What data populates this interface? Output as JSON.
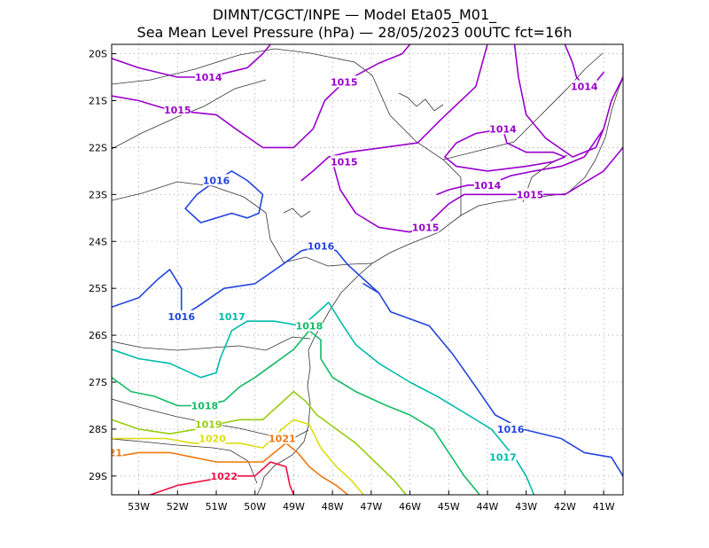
{
  "title": {
    "line1": "DIMNT/CGCT/INPE —  Model Eta05_M01_",
    "line2": "Sea Mean Level Pressure (hPa) — 28/05/2023 00UTC fct=16h"
  },
  "chart_data": {
    "type": "contour-map",
    "variable": "Sea Mean Level Pressure",
    "units": "hPa",
    "model": "Eta05_M01_",
    "init": "28/05/2023 00UTC",
    "forecast_hours": 16,
    "lon_range": [
      -53.7,
      -40.5
    ],
    "lat_range": [
      -29.4,
      -19.8
    ],
    "lon_ticks": [
      "53W",
      "52W",
      "51W",
      "50W",
      "49W",
      "48W",
      "47W",
      "46W",
      "45W",
      "44W",
      "43W",
      "42W",
      "41W"
    ],
    "lat_ticks": [
      "20S",
      "21S",
      "22S",
      "23S",
      "24S",
      "25S",
      "26S",
      "27S",
      "28S",
      "29S"
    ],
    "grid": "dotted",
    "levels": [
      {
        "value": "1014",
        "color": "#9900cc"
      },
      {
        "value": "1015",
        "color": "#9900cc"
      },
      {
        "value": "1016",
        "color": "#2244dd"
      },
      {
        "value": "1017",
        "color": "#00bbaa"
      },
      {
        "value": "1018",
        "color": "#11bb66"
      },
      {
        "value": "1019",
        "color": "#99cc11"
      },
      {
        "value": "1020",
        "color": "#dddd11"
      },
      {
        "value": "1021",
        "color": "#ee7711"
      },
      {
        "value": "1022",
        "color": "#ee1144"
      }
    ],
    "contour_labels": [
      {
        "text": "1014",
        "level": "1014",
        "lon": -51.2,
        "lat": -20.5
      },
      {
        "text": "1014",
        "level": "1014",
        "lon": -41.5,
        "lat": -20.7
      },
      {
        "text": "1014",
        "level": "1014",
        "lon": -43.6,
        "lat": -21.6
      },
      {
        "text": "1014",
        "level": "1014",
        "lon": -44.0,
        "lat": -22.8
      },
      {
        "text": "1015",
        "level": "1015",
        "lon": -47.7,
        "lat": -20.6
      },
      {
        "text": "1015",
        "level": "1015",
        "lon": -52.0,
        "lat": -21.2
      },
      {
        "text": "1015",
        "level": "1015",
        "lon": -47.7,
        "lat": -22.3
      },
      {
        "text": "1015",
        "level": "1015",
        "lon": -42.9,
        "lat": -23.0
      },
      {
        "text": "1015",
        "level": "1015",
        "lon": -45.6,
        "lat": -23.7
      },
      {
        "text": "1016",
        "level": "1016",
        "lon": -51.0,
        "lat": -22.7
      },
      {
        "text": "1016",
        "level": "1016",
        "lon": -48.3,
        "lat": -24.1
      },
      {
        "text": "1016",
        "level": "1016",
        "lon": -51.9,
        "lat": -25.6
      },
      {
        "text": "1016",
        "level": "1016",
        "lon": -43.4,
        "lat": -28.0
      },
      {
        "text": "1017",
        "level": "1017",
        "lon": -50.6,
        "lat": -25.6
      },
      {
        "text": "1017",
        "level": "1017",
        "lon": -43.6,
        "lat": -28.6
      },
      {
        "text": "1018",
        "level": "1018",
        "lon": -48.6,
        "lat": -25.8
      },
      {
        "text": "1018",
        "level": "1018",
        "lon": -51.3,
        "lat": -27.5
      },
      {
        "text": "1019",
        "level": "1019",
        "lon": -51.2,
        "lat": -27.9
      },
      {
        "text": "1020",
        "level": "1020",
        "lon": -51.1,
        "lat": -28.2
      },
      {
        "text": "1021",
        "level": "1021",
        "lon": -49.3,
        "lat": -28.2
      },
      {
        "text": "21",
        "level": "1021",
        "lon": -53.6,
        "lat": -28.5
      },
      {
        "text": "1022",
        "level": "1022",
        "lon": -50.8,
        "lat": -29.0
      }
    ],
    "contours": [
      {
        "level": "1014",
        "points": [
          [
            -53.7,
            -20.1
          ],
          [
            -53.0,
            -20.3
          ],
          [
            -52.0,
            -20.5
          ],
          [
            -51.2,
            -20.5
          ],
          [
            -50.2,
            -20.3
          ],
          [
            -49.8,
            -20.0
          ],
          [
            -49.6,
            -19.8
          ]
        ]
      },
      {
        "level": "1014",
        "points": [
          [
            -42.0,
            -19.8
          ],
          [
            -41.8,
            -20.2
          ],
          [
            -41.7,
            -20.5
          ],
          [
            -41.5,
            -20.7
          ],
          [
            -41.2,
            -20.6
          ],
          [
            -41.0,
            -20.4
          ]
        ]
      },
      {
        "level": "1014",
        "points": [
          [
            -45.3,
            -23.0
          ],
          [
            -45.0,
            -22.9
          ],
          [
            -44.5,
            -22.8
          ],
          [
            -44.0,
            -22.8
          ],
          [
            -43.4,
            -22.6
          ],
          [
            -42.8,
            -22.5
          ],
          [
            -42.1,
            -22.4
          ],
          [
            -41.5,
            -22.2
          ],
          [
            -41.0,
            -21.6
          ],
          [
            -40.8,
            -21.0
          ],
          [
            -40.5,
            -20.5
          ]
        ]
      },
      {
        "level": "1014",
        "points": [
          [
            -43.6,
            -21.6
          ],
          [
            -44.3,
            -21.7
          ],
          [
            -44.8,
            -21.9
          ],
          [
            -45.1,
            -22.2
          ],
          [
            -44.8,
            -22.4
          ],
          [
            -44.0,
            -22.5
          ],
          [
            -43.0,
            -22.4
          ],
          [
            -42.3,
            -22.3
          ],
          [
            -42.0,
            -22.2
          ],
          [
            -42.3,
            -22.1
          ],
          [
            -43.0,
            -22.1
          ],
          [
            -43.5,
            -21.9
          ],
          [
            -43.6,
            -21.6
          ]
        ]
      },
      {
        "level": "1015",
        "points": [
          [
            -53.7,
            -20.9
          ],
          [
            -53.0,
            -21.0
          ],
          [
            -52.2,
            -21.2
          ],
          [
            -51.0,
            -21.3
          ],
          [
            -50.5,
            -21.6
          ],
          [
            -49.8,
            -22.0
          ],
          [
            -49.0,
            -22.0
          ],
          [
            -48.5,
            -21.6
          ],
          [
            -48.2,
            -21.0
          ],
          [
            -47.7,
            -20.6
          ],
          [
            -46.8,
            -20.2
          ],
          [
            -46.2,
            -20.0
          ],
          [
            -46.0,
            -19.8
          ]
        ]
      },
      {
        "level": "1015",
        "points": [
          [
            -48.8,
            -22.7
          ],
          [
            -48.5,
            -22.5
          ],
          [
            -48.1,
            -22.2
          ],
          [
            -47.6,
            -22.1
          ],
          [
            -46.7,
            -22.0
          ],
          [
            -45.8,
            -21.9
          ],
          [
            -45.2,
            -21.4
          ],
          [
            -44.3,
            -20.7
          ],
          [
            -44.0,
            -19.8
          ]
        ]
      },
      {
        "level": "1015",
        "points": [
          [
            -48.0,
            -22.3
          ],
          [
            -47.8,
            -22.9
          ],
          [
            -47.4,
            -23.4
          ],
          [
            -46.8,
            -23.7
          ],
          [
            -46.0,
            -23.8
          ],
          [
            -45.5,
            -23.6
          ],
          [
            -45.0,
            -23.2
          ],
          [
            -44.6,
            -23.0
          ],
          [
            -43.8,
            -23.0
          ],
          [
            -43.0,
            -23.0
          ],
          [
            -42.0,
            -23.0
          ],
          [
            -41.0,
            -22.5
          ],
          [
            -40.5,
            -22.0
          ]
        ]
      },
      {
        "level": "1015",
        "points": [
          [
            -43.3,
            -19.8
          ],
          [
            -43.2,
            -20.5
          ],
          [
            -43.0,
            -21.3
          ],
          [
            -42.5,
            -21.8
          ],
          [
            -41.8,
            -22.2
          ],
          [
            -41.2,
            -22.0
          ],
          [
            -41.0,
            -21.6
          ]
        ]
      },
      {
        "level": "1016",
        "points": [
          [
            -53.7,
            -25.4
          ],
          [
            -53.0,
            -25.2
          ],
          [
            -52.5,
            -24.8
          ],
          [
            -52.2,
            -24.6
          ],
          [
            -51.9,
            -25.0
          ],
          [
            -51.9,
            -25.6
          ]
        ]
      },
      {
        "level": "1016",
        "points": [
          [
            -51.9,
            -25.6
          ],
          [
            -51.5,
            -25.4
          ],
          [
            -50.8,
            -25.0
          ],
          [
            -50.0,
            -24.9
          ],
          [
            -49.3,
            -24.5
          ],
          [
            -48.8,
            -24.2
          ],
          [
            -48.3,
            -24.1
          ],
          [
            -47.9,
            -24.2
          ],
          [
            -47.6,
            -24.5
          ],
          [
            -47.2,
            -24.8
          ],
          [
            -46.8,
            -25.1
          ]
        ]
      },
      {
        "level": "1016",
        "points": [
          [
            -51.8,
            -23.3
          ],
          [
            -51.5,
            -23.0
          ],
          [
            -51.0,
            -22.7
          ],
          [
            -50.6,
            -22.5
          ],
          [
            -50.2,
            -22.7
          ],
          [
            -49.8,
            -23.0
          ],
          [
            -49.9,
            -23.4
          ],
          [
            -50.2,
            -23.5
          ],
          [
            -50.6,
            -23.4
          ],
          [
            -51.0,
            -23.5
          ],
          [
            -51.4,
            -23.6
          ],
          [
            -51.8,
            -23.3
          ]
        ]
      },
      {
        "level": "1016",
        "points": [
          [
            -47.2,
            -24.9
          ],
          [
            -46.8,
            -25.1
          ],
          [
            -46.5,
            -25.5
          ],
          [
            -45.5,
            -25.8
          ],
          [
            -44.9,
            -26.4
          ],
          [
            -44.3,
            -27.1
          ],
          [
            -43.8,
            -27.7
          ],
          [
            -43.1,
            -28.0
          ],
          [
            -42.1,
            -28.2
          ],
          [
            -41.5,
            -28.5
          ],
          [
            -40.8,
            -28.6
          ],
          [
            -40.5,
            -29.0
          ]
        ]
      },
      {
        "level": "1017",
        "points": [
          [
            -53.7,
            -26.3
          ],
          [
            -53.0,
            -26.5
          ],
          [
            -52.2,
            -26.6
          ],
          [
            -51.4,
            -26.9
          ],
          [
            -51.0,
            -26.8
          ],
          [
            -50.9,
            -26.5
          ],
          [
            -50.6,
            -25.9
          ],
          [
            -50.2,
            -25.7
          ],
          [
            -49.5,
            -25.7
          ],
          [
            -48.8,
            -25.8
          ],
          [
            -48.5,
            -25.6
          ],
          [
            -48.1,
            -25.3
          ],
          [
            -47.8,
            -25.7
          ],
          [
            -47.4,
            -26.2
          ],
          [
            -46.8,
            -26.6
          ],
          [
            -46.0,
            -27.0
          ],
          [
            -45.3,
            -27.3
          ],
          [
            -44.5,
            -27.7
          ],
          [
            -43.9,
            -28.0
          ],
          [
            -43.6,
            -28.3
          ],
          [
            -43.3,
            -28.6
          ],
          [
            -43.0,
            -29.0
          ],
          [
            -42.8,
            -29.4
          ]
        ]
      },
      {
        "level": "1018",
        "points": [
          [
            -53.7,
            -26.9
          ],
          [
            -53.2,
            -27.2
          ],
          [
            -52.6,
            -27.3
          ],
          [
            -52.0,
            -27.5
          ],
          [
            -51.4,
            -27.5
          ],
          [
            -50.8,
            -27.4
          ],
          [
            -50.4,
            -27.1
          ],
          [
            -50.0,
            -26.9
          ],
          [
            -49.5,
            -26.6
          ],
          [
            -49.0,
            -26.3
          ],
          [
            -48.6,
            -25.9
          ],
          [
            -48.3,
            -26.1
          ],
          [
            -48.3,
            -26.5
          ],
          [
            -48.0,
            -26.9
          ],
          [
            -47.4,
            -27.2
          ],
          [
            -46.6,
            -27.5
          ],
          [
            -46.0,
            -27.7
          ],
          [
            -45.4,
            -28.0
          ],
          [
            -45.0,
            -28.5
          ],
          [
            -44.6,
            -29.0
          ],
          [
            -44.2,
            -29.4
          ]
        ]
      },
      {
        "level": "1019",
        "points": [
          [
            -53.7,
            -27.8
          ],
          [
            -53.0,
            -28.0
          ],
          [
            -52.2,
            -28.1
          ],
          [
            -51.5,
            -28.0
          ],
          [
            -51.0,
            -27.9
          ],
          [
            -50.4,
            -27.8
          ],
          [
            -49.8,
            -27.8
          ],
          [
            -49.4,
            -27.5
          ],
          [
            -49.0,
            -27.2
          ],
          [
            -48.7,
            -27.4
          ],
          [
            -48.4,
            -27.7
          ],
          [
            -47.9,
            -28.0
          ],
          [
            -47.4,
            -28.3
          ],
          [
            -46.9,
            -28.7
          ],
          [
            -46.4,
            -29.1
          ],
          [
            -46.1,
            -29.4
          ]
        ]
      },
      {
        "level": "1020",
        "points": [
          [
            -53.7,
            -28.2
          ],
          [
            -53.0,
            -28.2
          ],
          [
            -52.3,
            -28.2
          ],
          [
            -51.6,
            -28.3
          ],
          [
            -51.0,
            -28.3
          ],
          [
            -50.4,
            -28.3
          ],
          [
            -49.8,
            -28.4
          ],
          [
            -49.3,
            -28.0
          ],
          [
            -49.0,
            -27.8
          ],
          [
            -48.6,
            -27.9
          ],
          [
            -48.3,
            -28.4
          ],
          [
            -47.9,
            -28.8
          ],
          [
            -47.5,
            -29.1
          ],
          [
            -47.2,
            -29.4
          ]
        ]
      },
      {
        "level": "1021",
        "points": [
          [
            -53.7,
            -28.6
          ],
          [
            -53.0,
            -28.5
          ],
          [
            -52.2,
            -28.5
          ],
          [
            -51.6,
            -28.6
          ],
          [
            -51.0,
            -28.7
          ],
          [
            -50.4,
            -28.7
          ],
          [
            -49.8,
            -28.7
          ],
          [
            -49.5,
            -28.5
          ],
          [
            -49.2,
            -28.3
          ],
          [
            -48.9,
            -28.5
          ],
          [
            -48.6,
            -28.8
          ],
          [
            -48.3,
            -29.0
          ],
          [
            -47.9,
            -29.2
          ],
          [
            -47.6,
            -29.4
          ]
        ]
      },
      {
        "level": "1022",
        "points": [
          [
            -52.7,
            -29.4
          ],
          [
            -52.0,
            -29.2
          ],
          [
            -51.3,
            -29.1
          ],
          [
            -50.6,
            -29.0
          ],
          [
            -50.0,
            -29.0
          ],
          [
            -49.6,
            -28.7
          ],
          [
            -49.2,
            -28.8
          ],
          [
            -49.1,
            -29.2
          ],
          [
            -49.0,
            -29.4
          ]
        ]
      }
    ]
  }
}
